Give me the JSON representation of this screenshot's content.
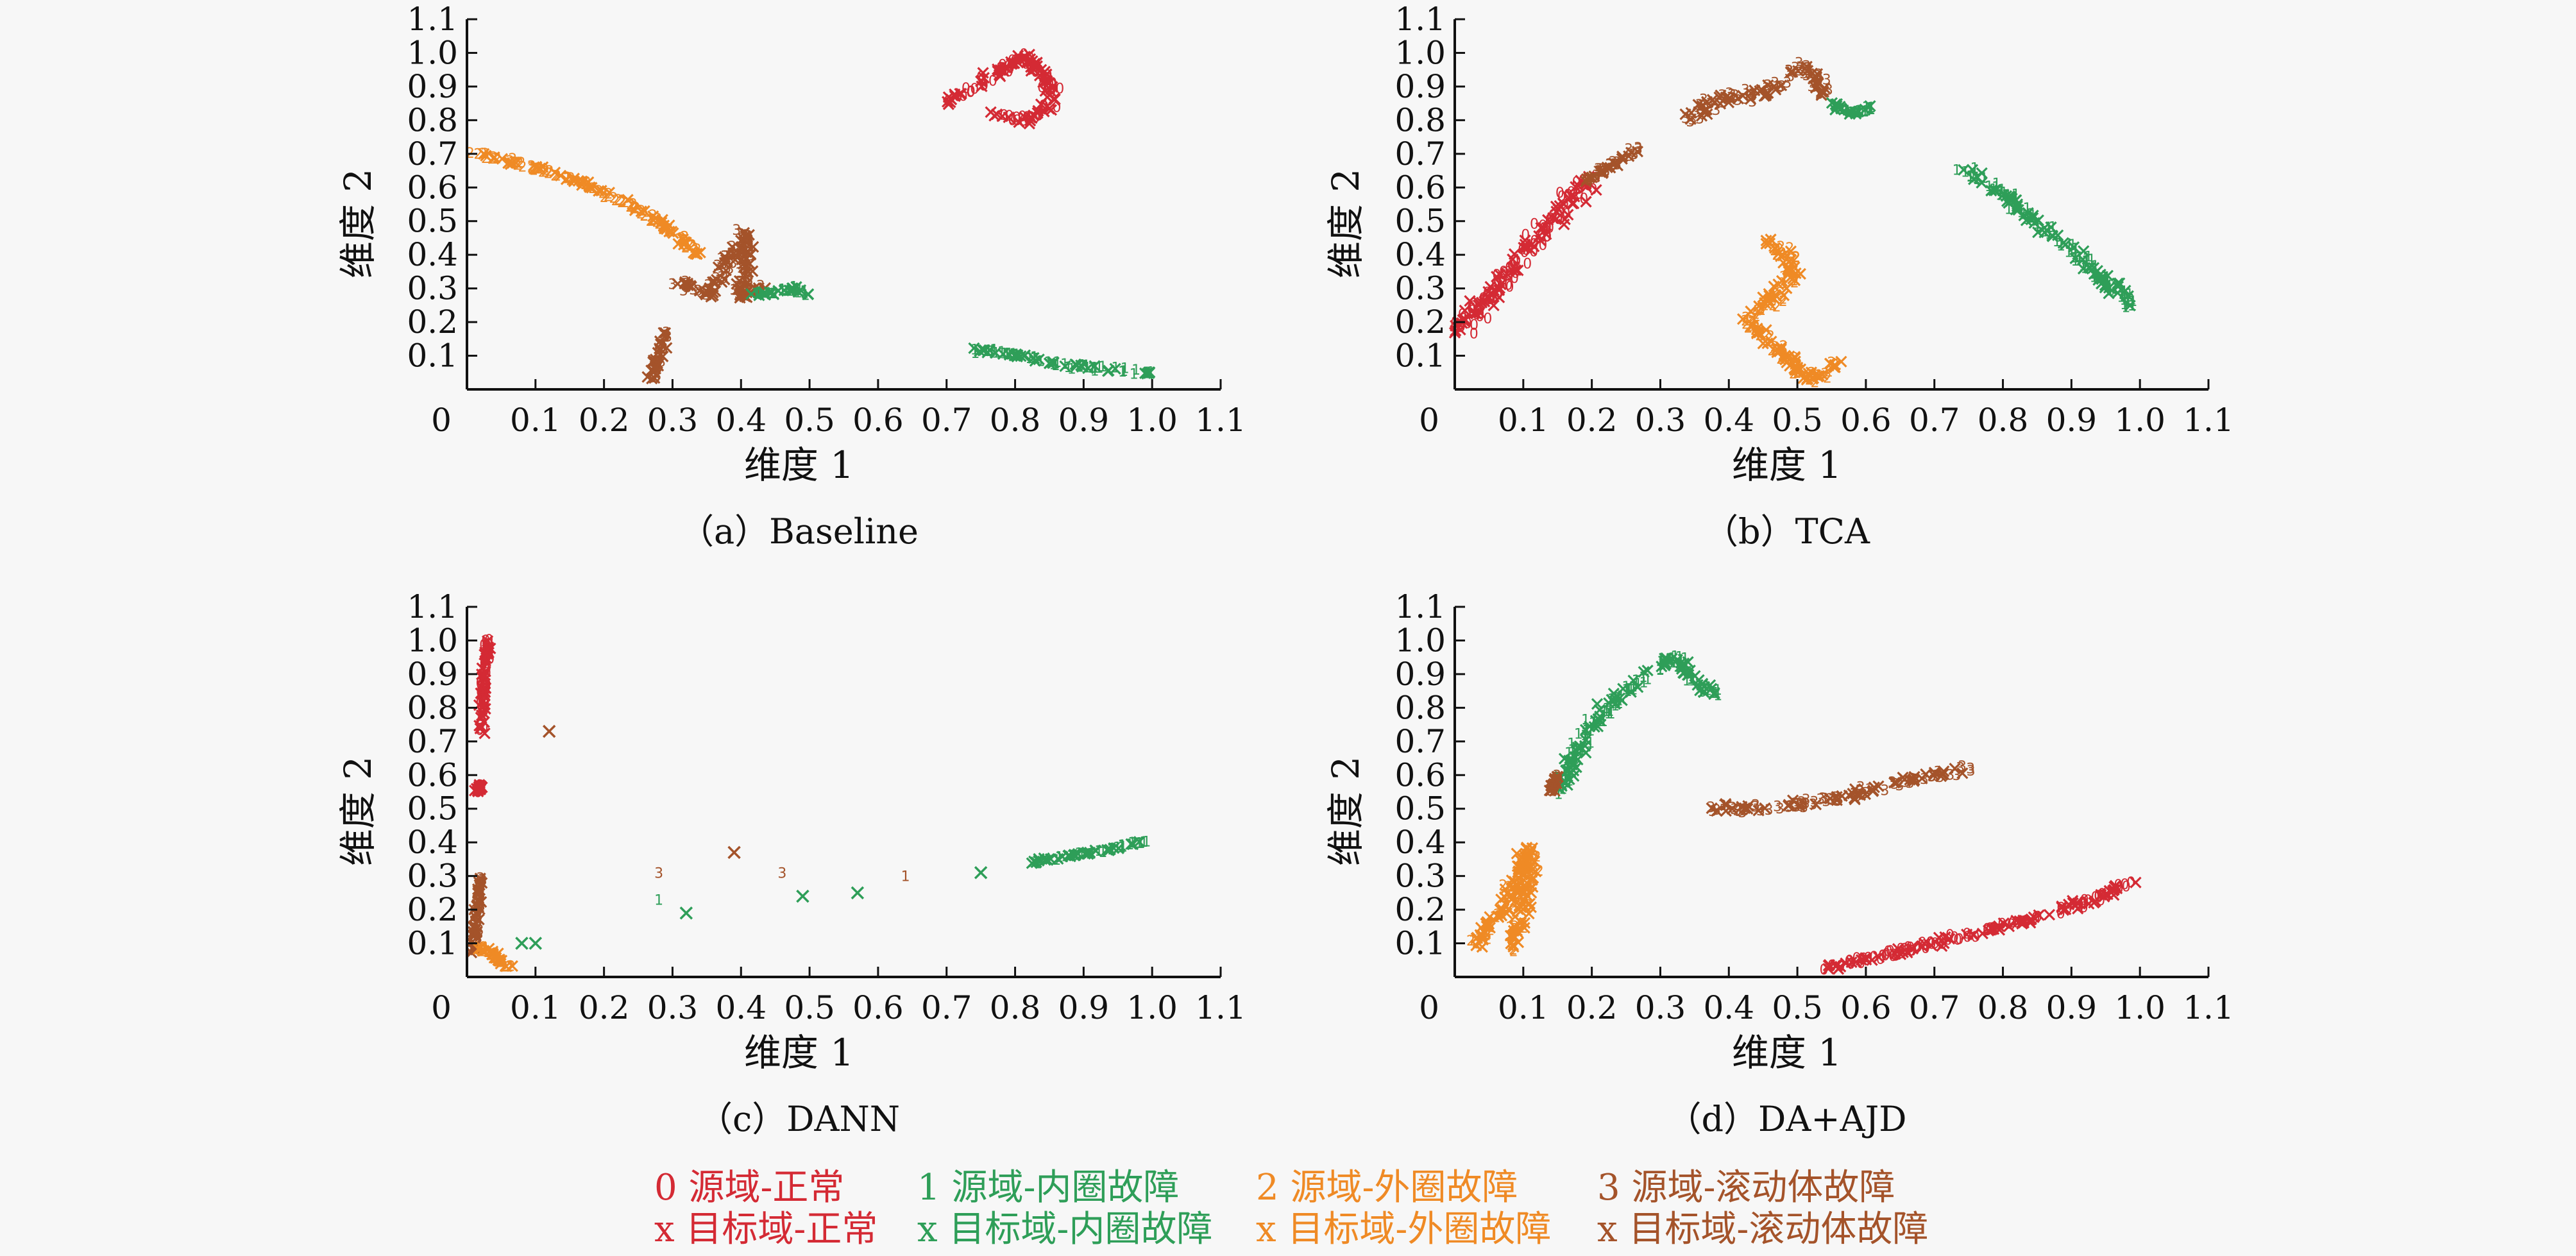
{
  "colors": {
    "normal": "#d42a34",
    "inner": "#2e9e58",
    "outer": "#ef8a25",
    "rolling": "#a4532a",
    "axis": "#111111"
  },
  "legend": {
    "entries": [
      {
        "key": "normal",
        "marker": "0",
        "label": "源域-正常"
      },
      {
        "key": "inner",
        "marker": "1",
        "label": "源域-内圈故障"
      },
      {
        "key": "outer",
        "marker": "2",
        "label": "源域-外圈故障"
      },
      {
        "key": "rolling",
        "marker": "3",
        "label": "源域-滚动体故障"
      },
      {
        "key": "normal",
        "marker": "x",
        "label": "目标域-正常"
      },
      {
        "key": "inner",
        "marker": "x",
        "label": "目标域-内圈故障"
      },
      {
        "key": "outer",
        "marker": "x",
        "label": "目标域-外圈故障"
      },
      {
        "key": "rolling",
        "marker": "x",
        "label": "目标域-滚动体故障"
      }
    ]
  },
  "chart_data": [
    {
      "type": "scatter",
      "caption": "（a）Baseline",
      "xlabel": "维度 1",
      "ylabel": "维度 2",
      "xlim": [
        0,
        1.1
      ],
      "ylim": [
        0,
        1.1
      ],
      "xticks": [
        "0",
        "0.1",
        "0.2",
        "0.3",
        "0.4",
        "0.5",
        "0.6",
        "0.7",
        "0.8",
        "0.9",
        "1.0",
        "1.1"
      ],
      "yticks": [
        "0.1",
        "0.2",
        "0.3",
        "0.4",
        "0.5",
        "0.6",
        "0.7",
        "0.8",
        "0.9",
        "1.0",
        "1.1"
      ],
      "grid": false,
      "clusters": [
        {
          "class": "normal",
          "path": [
            [
              0.7,
              0.85
            ],
            [
              0.74,
              0.9
            ],
            [
              0.78,
              0.95
            ],
            [
              0.81,
              0.99
            ],
            [
              0.84,
              0.94
            ],
            [
              0.86,
              0.86
            ],
            [
              0.82,
              0.8
            ],
            [
              0.76,
              0.82
            ]
          ],
          "spread": 0.018
        },
        {
          "class": "outer",
          "path": [
            [
              0.0,
              0.71
            ],
            [
              0.08,
              0.67
            ],
            [
              0.16,
              0.62
            ],
            [
              0.24,
              0.55
            ],
            [
              0.3,
              0.47
            ],
            [
              0.34,
              0.4
            ]
          ],
          "spread": 0.013
        },
        {
          "class": "rolling",
          "path": [
            [
              0.31,
              0.32
            ],
            [
              0.35,
              0.28
            ],
            [
              0.38,
              0.38
            ],
            [
              0.41,
              0.47
            ],
            [
              0.4,
              0.28
            ],
            [
              0.43,
              0.3
            ]
          ],
          "spread": 0.018
        },
        {
          "class": "rolling",
          "path": [
            [
              0.27,
              0.03
            ],
            [
              0.28,
              0.1
            ],
            [
              0.29,
              0.17
            ]
          ],
          "spread": 0.011
        },
        {
          "class": "inner",
          "path": [
            [
              0.42,
              0.28
            ],
            [
              0.45,
              0.29
            ],
            [
              0.48,
              0.3
            ],
            [
              0.5,
              0.28
            ]
          ],
          "spread": 0.01
        },
        {
          "class": "inner",
          "path": [
            [
              0.73,
              0.12
            ],
            [
              0.78,
              0.11
            ],
            [
              0.83,
              0.09
            ],
            [
              0.88,
              0.07
            ],
            [
              0.94,
              0.06
            ],
            [
              1.0,
              0.05
            ]
          ],
          "spread": 0.011
        }
      ]
    },
    {
      "type": "scatter",
      "caption": "（b）TCA",
      "xlabel": "维度 1",
      "ylabel": "维度 2",
      "xlim": [
        0,
        1.1
      ],
      "ylim": [
        0,
        1.1
      ],
      "xticks": [
        "0",
        "0.1",
        "0.2",
        "0.3",
        "0.4",
        "0.5",
        "0.6",
        "0.7",
        "0.8",
        "0.9",
        "1.0",
        "1.1"
      ],
      "yticks": [
        "0.1",
        "0.2",
        "0.3",
        "0.4",
        "0.5",
        "0.6",
        "0.7",
        "0.8",
        "0.9",
        "1.0",
        "1.1"
      ],
      "grid": false,
      "clusters": [
        {
          "class": "normal",
          "path": [
            [
              0.0,
              0.17
            ],
            [
              0.04,
              0.25
            ],
            [
              0.08,
              0.35
            ],
            [
              0.12,
              0.45
            ],
            [
              0.16,
              0.55
            ],
            [
              0.2,
              0.62
            ]
          ],
          "spread": 0.03
        },
        {
          "class": "rolling",
          "path": [
            [
              0.19,
              0.62
            ],
            [
              0.23,
              0.67
            ],
            [
              0.27,
              0.72
            ]
          ],
          "spread": 0.01
        },
        {
          "class": "rolling",
          "path": [
            [
              0.34,
              0.8
            ],
            [
              0.38,
              0.86
            ],
            [
              0.43,
              0.87
            ],
            [
              0.47,
              0.9
            ],
            [
              0.51,
              0.96
            ],
            [
              0.54,
              0.88
            ]
          ],
          "spread": 0.022
        },
        {
          "class": "inner",
          "path": [
            [
              0.55,
              0.85
            ],
            [
              0.58,
              0.82
            ],
            [
              0.61,
              0.84
            ]
          ],
          "spread": 0.008
        },
        {
          "class": "inner",
          "path": [
            [
              0.74,
              0.66
            ],
            [
              0.8,
              0.58
            ],
            [
              0.86,
              0.48
            ],
            [
              0.91,
              0.4
            ],
            [
              0.95,
              0.32
            ],
            [
              0.99,
              0.25
            ]
          ],
          "spread": 0.02
        },
        {
          "class": "outer",
          "path": [
            [
              0.46,
              0.45
            ],
            [
              0.5,
              0.36
            ],
            [
              0.47,
              0.28
            ],
            [
              0.43,
              0.2
            ],
            [
              0.47,
              0.12
            ],
            [
              0.52,
              0.03
            ],
            [
              0.56,
              0.08
            ]
          ],
          "spread": 0.02
        }
      ]
    },
    {
      "type": "scatter",
      "caption": "（c）DANN",
      "xlabel": "维度 1",
      "ylabel": "维度 2",
      "xlim": [
        0,
        1.1
      ],
      "ylim": [
        0,
        1.1
      ],
      "xticks": [
        "0",
        "0.1",
        "0.2",
        "0.3",
        "0.4",
        "0.5",
        "0.6",
        "0.7",
        "0.8",
        "0.9",
        "1.0",
        "1.1"
      ],
      "yticks": [
        "0.1",
        "0.2",
        "0.3",
        "0.4",
        "0.5",
        "0.6",
        "0.7",
        "0.8",
        "0.9",
        "1.0",
        "1.1"
      ],
      "grid": false,
      "clusters": [
        {
          "class": "normal",
          "path": [
            [
              0.02,
              0.72
            ],
            [
              0.025,
              0.85
            ],
            [
              0.03,
              1.0
            ]
          ],
          "spread": 0.008
        },
        {
          "class": "normal",
          "path": [
            [
              0.015,
              0.55
            ],
            [
              0.02,
              0.57
            ]
          ],
          "spread": 0.005
        },
        {
          "class": "rolling",
          "path": [
            [
              0.01,
              0.07
            ],
            [
              0.015,
              0.18
            ],
            [
              0.02,
              0.3
            ]
          ],
          "spread": 0.008
        },
        {
          "class": "outer",
          "path": [
            [
              0.02,
              0.09
            ],
            [
              0.04,
              0.06
            ],
            [
              0.06,
              0.03
            ]
          ],
          "spread": 0.01
        },
        {
          "class": "inner",
          "path": [
            [
              0.82,
              0.34
            ],
            [
              0.88,
              0.36
            ],
            [
              0.94,
              0.38
            ],
            [
              1.0,
              0.41
            ]
          ],
          "spread": 0.008
        }
      ],
      "points": [
        {
          "class": "rolling",
          "marker": "x",
          "x": 0.12,
          "y": 0.73
        },
        {
          "class": "rolling",
          "marker": "x",
          "x": 0.39,
          "y": 0.37
        },
        {
          "class": "rolling",
          "marker": "3",
          "x": 0.28,
          "y": 0.31
        },
        {
          "class": "rolling",
          "marker": "3",
          "x": 0.46,
          "y": 0.31
        },
        {
          "class": "inner",
          "marker": "1",
          "x": 0.28,
          "y": 0.23
        },
        {
          "class": "inner",
          "marker": "x",
          "x": 0.32,
          "y": 0.19
        },
        {
          "class": "inner",
          "marker": "x",
          "x": 0.49,
          "y": 0.24
        },
        {
          "class": "inner",
          "marker": "x",
          "x": 0.57,
          "y": 0.25
        },
        {
          "class": "rolling",
          "marker": "1",
          "x": 0.64,
          "y": 0.3
        },
        {
          "class": "inner",
          "marker": "x",
          "x": 0.75,
          "y": 0.31
        },
        {
          "class": "inner",
          "marker": "x",
          "x": 0.08,
          "y": 0.1
        },
        {
          "class": "inner",
          "marker": "x",
          "x": 0.1,
          "y": 0.1
        }
      ]
    },
    {
      "type": "scatter",
      "caption": "（d）DA+AJD",
      "xlabel": "维度 1",
      "ylabel": "维度 2",
      "xlim": [
        0,
        1.1
      ],
      "ylim": [
        0,
        1.1
      ],
      "xticks": [
        "0",
        "0.1",
        "0.2",
        "0.3",
        "0.4",
        "0.5",
        "0.6",
        "0.7",
        "0.8",
        "0.9",
        "1.0",
        "1.1"
      ],
      "yticks": [
        "0.1",
        "0.2",
        "0.3",
        "0.4",
        "0.5",
        "0.6",
        "0.7",
        "0.8",
        "0.9",
        "1.0",
        "1.1"
      ],
      "grid": false,
      "clusters": [
        {
          "class": "inner",
          "path": [
            [
              0.15,
              0.55
            ],
            [
              0.18,
              0.68
            ],
            [
              0.22,
              0.8
            ],
            [
              0.27,
              0.88
            ],
            [
              0.32,
              0.95
            ],
            [
              0.36,
              0.86
            ],
            [
              0.39,
              0.84
            ]
          ],
          "spread": 0.02
        },
        {
          "class": "rolling",
          "path": [
            [
              0.14,
              0.55
            ],
            [
              0.15,
              0.6
            ]
          ],
          "spread": 0.006
        },
        {
          "class": "outer",
          "path": [
            [
              0.03,
              0.1
            ],
            [
              0.07,
              0.2
            ],
            [
              0.09,
              0.28
            ],
            [
              0.11,
              0.38
            ],
            [
              0.1,
              0.2
            ],
            [
              0.08,
              0.08
            ]
          ],
          "spread": 0.022
        },
        {
          "class": "rolling",
          "path": [
            [
              0.37,
              0.5
            ],
            [
              0.45,
              0.5
            ],
            [
              0.52,
              0.52
            ],
            [
              0.58,
              0.54
            ],
            [
              0.65,
              0.58
            ],
            [
              0.75,
              0.62
            ]
          ],
          "spread": 0.018
        },
        {
          "class": "normal",
          "path": [
            [
              0.54,
              0.03
            ],
            [
              0.62,
              0.06
            ],
            [
              0.7,
              0.1
            ],
            [
              0.78,
              0.14
            ],
            [
              0.86,
              0.18
            ],
            [
              0.93,
              0.23
            ],
            [
              0.99,
              0.28
            ]
          ],
          "spread": 0.016
        }
      ]
    }
  ]
}
